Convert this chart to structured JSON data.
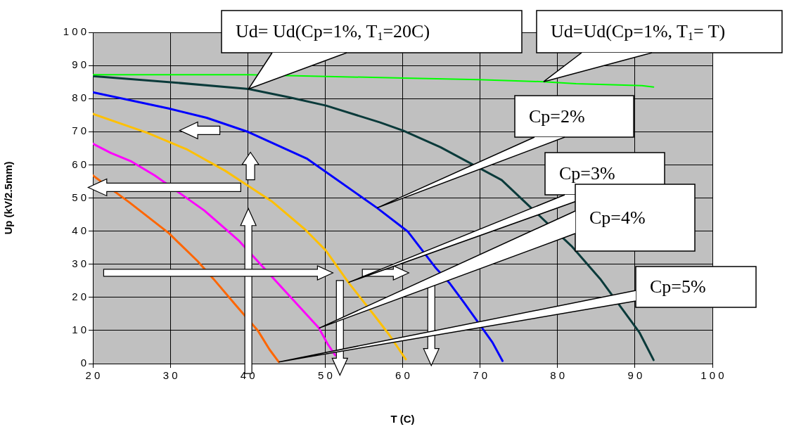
{
  "chart_data": {
    "type": "line",
    "xlabel": "T (C)",
    "ylabel": "Up (kV/2.5mm)",
    "xlim": [
      20,
      100
    ],
    "xticks": [
      20,
      30,
      40,
      50,
      60,
      70,
      80,
      90,
      100
    ],
    "ylim": [
      0,
      100
    ],
    "yticks": [
      0,
      10,
      20,
      30,
      40,
      50,
      60,
      70,
      80,
      90,
      100
    ],
    "grid": true,
    "legend": false,
    "marker": "none",
    "line_style": "solid",
    "series": [
      {
        "color": "#00ff00",
        "x": [
          20,
          29.8,
          40.1,
          60.1,
          69.8,
          78.2,
          82.4,
          90.9,
          92.4
        ],
        "values": [
          87.2,
          87.2,
          87.2,
          86.2,
          85.7,
          85.1,
          84.5,
          83.9,
          83.5
        ]
      },
      {
        "color": "#0a3a3a",
        "x": [
          20,
          29.8,
          40.1,
          45.3,
          50.1,
          57.1,
          60.1,
          64.9,
          72.8,
          81.8,
          85.5,
          90.6,
          92.4
        ],
        "values": [
          86.8,
          85,
          82.9,
          80.4,
          77.9,
          72.8,
          70.3,
          65.3,
          55.4,
          35.5,
          25.6,
          9.3,
          1.1
        ]
      },
      {
        "color": "#0000ff",
        "x": [
          20,
          29.8,
          34.7,
          40.1,
          47.7,
          56.7,
          60.7,
          64.2,
          66.1,
          67.9,
          71.6,
          72.9
        ],
        "values": [
          81.9,
          77,
          74.2,
          69.9,
          61.8,
          47,
          39.8,
          29.1,
          24.2,
          18.5,
          6.4,
          0.8
        ]
      },
      {
        "color": "#ffc000",
        "x": [
          20,
          27.1,
          32.2,
          37.1,
          43.1,
          47.4,
          50.1,
          53,
          56.3,
          58.3,
          60.4
        ],
        "values": [
          75.4,
          69.6,
          64.6,
          58.2,
          49,
          40.5,
          34.1,
          24.5,
          14.7,
          8.6,
          1.3
        ]
      },
      {
        "color": "#ff00ff",
        "x": [
          20,
          22.3,
          25,
          28,
          34.4,
          38.9,
          45.6,
          49.2,
          50.3,
          51.3
        ],
        "values": [
          66.4,
          63.6,
          61,
          56.8,
          46.2,
          37,
          19.9,
          10.7,
          6,
          2.5
        ]
      },
      {
        "color": "#ff6600",
        "x": [
          20,
          24.7,
          29.8,
          33.5,
          35.6,
          38.5,
          41.3,
          42.8,
          44
        ],
        "values": [
          56.8,
          48.7,
          39.4,
          31,
          25.5,
          17.5,
          10,
          4.3,
          0.5
        ]
      }
    ],
    "annotations": [
      {
        "text": "Ud= Ud(Cp=1%, T$_{1}$=20C)",
        "x": 40.1,
        "y": 82.9
      },
      {
        "text": "Ud=Ud(Cp=1%, T$_{1}$= T)",
        "x": 78.2,
        "y": 85.1
      },
      {
        "text": "Cp=2%",
        "x": 56.7,
        "y": 47
      },
      {
        "text": "Cp=3%",
        "x": 53,
        "y": 24.5
      },
      {
        "text": "Cp=4%",
        "x": 49.2,
        "y": 10.7
      },
      {
        "text": "Cp=5%",
        "x": 44,
        "y": 0.5
      }
    ]
  }
}
